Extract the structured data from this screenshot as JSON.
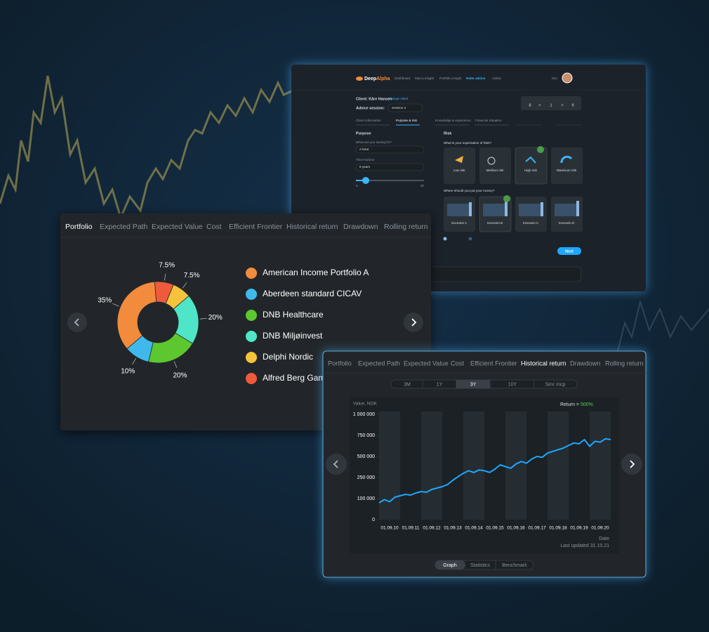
{
  "robo_panel": {
    "brand": "Deep",
    "brand_accent": "Alpha",
    "nav": [
      "Dashboard",
      "Macro insight",
      "Portfolio insight",
      "Robo advice",
      "Admin"
    ],
    "user": "Kim",
    "client": "Client: Kåre Hansen",
    "change_client": "Change client",
    "session_label": "Advice session:",
    "session": "Session 2",
    "summary": [
      8,
      "+",
      1,
      "=",
      9
    ],
    "steps": [
      "Client information",
      "Purpose & risk",
      "Knowledge & experience",
      "Financial Situation"
    ],
    "purpose": {
      "title": "Purpose",
      "saving_label": "What are you saving for?",
      "saving": "A boat",
      "horizon_label": "Time horizon",
      "horizon": "6 years",
      "slider_min": "0",
      "slider_max": "30"
    },
    "risk": {
      "title": "Risk",
      "question": "What is your expectation of Risk?",
      "options": [
        "Low risk",
        "Medium risk",
        "High risk",
        "Maximum risk"
      ],
      "money_question": "Where should you put your money?",
      "scenarios": [
        "Scenario A",
        "Scenario B",
        "Scenario C",
        "Scenario D"
      ]
    },
    "next": "Next"
  },
  "portfolio_panel": {
    "tabs": [
      "Portfolio",
      "Expected Path",
      "Expected Value",
      "Cost",
      "Efficient Frontier",
      "Historical return",
      "Drawdown",
      "Rolling return"
    ]
  },
  "history_panel": {
    "tabs": [
      "Portfolio",
      "Expected Path",
      "Expected Value",
      "Cost",
      "Efficient Frontier",
      "Historical return",
      "Drawdown",
      "Rolling return"
    ],
    "periods": [
      "3M",
      "1Y",
      "3Y",
      "10Y",
      "Sinc Incp"
    ],
    "return_label": "Return =",
    "return_value": "500%",
    "last_updated": "Last updated 31.10.21",
    "views": [
      "Graph",
      "Statistics",
      "Benchmark"
    ]
  },
  "chart_data": [
    {
      "type": "pie",
      "categories": [
        "American Income Portfolio A",
        "Aberdeen standard CICAV",
        "DNB Healthcare",
        "DNB Miljøinvest",
        "Delphi Nordic",
        "Alfred Berg Gambak"
      ],
      "values": [
        35,
        10,
        20,
        20,
        7.5,
        7.5
      ],
      "value_labels": [
        "35%",
        "10%",
        "20%",
        "20%",
        "7.5%",
        "7.5%"
      ],
      "colors": [
        "#f28c3c",
        "#3fb9ec",
        "#5cc72f",
        "#4ee6c6",
        "#f5c23b",
        "#ef5a3c"
      ]
    },
    {
      "type": "line",
      "y_label": "Value, NOK",
      "x_label": "Date",
      "x": [
        2010.17,
        2010.42,
        2010.67,
        2010.92,
        2011.17,
        2011.42,
        2011.67,
        2011.92,
        2012.17,
        2012.42,
        2012.67,
        2012.92,
        2013.17,
        2013.42,
        2013.67,
        2013.92,
        2014.17,
        2014.42,
        2014.67,
        2014.92,
        2015.17,
        2015.42,
        2015.67,
        2015.92,
        2016.17,
        2016.42,
        2016.67,
        2016.92,
        2017.17,
        2017.42,
        2017.67,
        2017.92,
        2018.17,
        2018.42,
        2018.67,
        2018.92,
        2019.17,
        2019.42,
        2019.67,
        2019.92,
        2020.17,
        2020.42,
        2020.67,
        2020.92,
        2021.17
      ],
      "series": [
        {
          "color": "#1ea7ff",
          "values": [
            80000,
            95000,
            85000,
            110000,
            120000,
            130000,
            125000,
            140000,
            150000,
            145000,
            165000,
            175000,
            185000,
            200000,
            230000,
            260000,
            300000,
            330000,
            310000,
            340000,
            330000,
            310000,
            350000,
            400000,
            380000,
            360000,
            410000,
            440000,
            420000,
            470000,
            500000,
            490000,
            540000,
            560000,
            580000,
            600000,
            630000,
            660000,
            650000,
            700000,
            620000,
            680000,
            670000,
            710000,
            700000
          ]
        }
      ],
      "xlim": [
        2010.17,
        2021.17
      ],
      "xticks": [
        {
          "value": 2010.67,
          "label": "01.09.10"
        },
        {
          "value": 2011.67,
          "label": "01.09.11"
        },
        {
          "value": 2012.67,
          "label": "01.09.12"
        },
        {
          "value": 2013.67,
          "label": "01.09.13"
        },
        {
          "value": 2014.67,
          "label": "01.09.14"
        },
        {
          "value": 2015.67,
          "label": "01.09.15"
        },
        {
          "value": 2016.67,
          "label": "01.09.16"
        },
        {
          "value": 2017.67,
          "label": "01.09.17"
        },
        {
          "value": 2018.67,
          "label": "01.09.18"
        },
        {
          "value": 2019.67,
          "label": "01.09.19"
        },
        {
          "value": 2020.67,
          "label": "01.09.20"
        }
      ],
      "ylim": [
        0,
        1000000
      ],
      "yticks": [
        0,
        {
          "value": 100000,
          "label": "100 000"
        },
        {
          "value": 250000,
          "label": "250 000"
        },
        {
          "value": 500000,
          "label": "500 000"
        },
        {
          "value": 750000,
          "label": "750 000"
        },
        {
          "value": 1000000,
          "label": "1 000 000"
        }
      ]
    }
  ]
}
